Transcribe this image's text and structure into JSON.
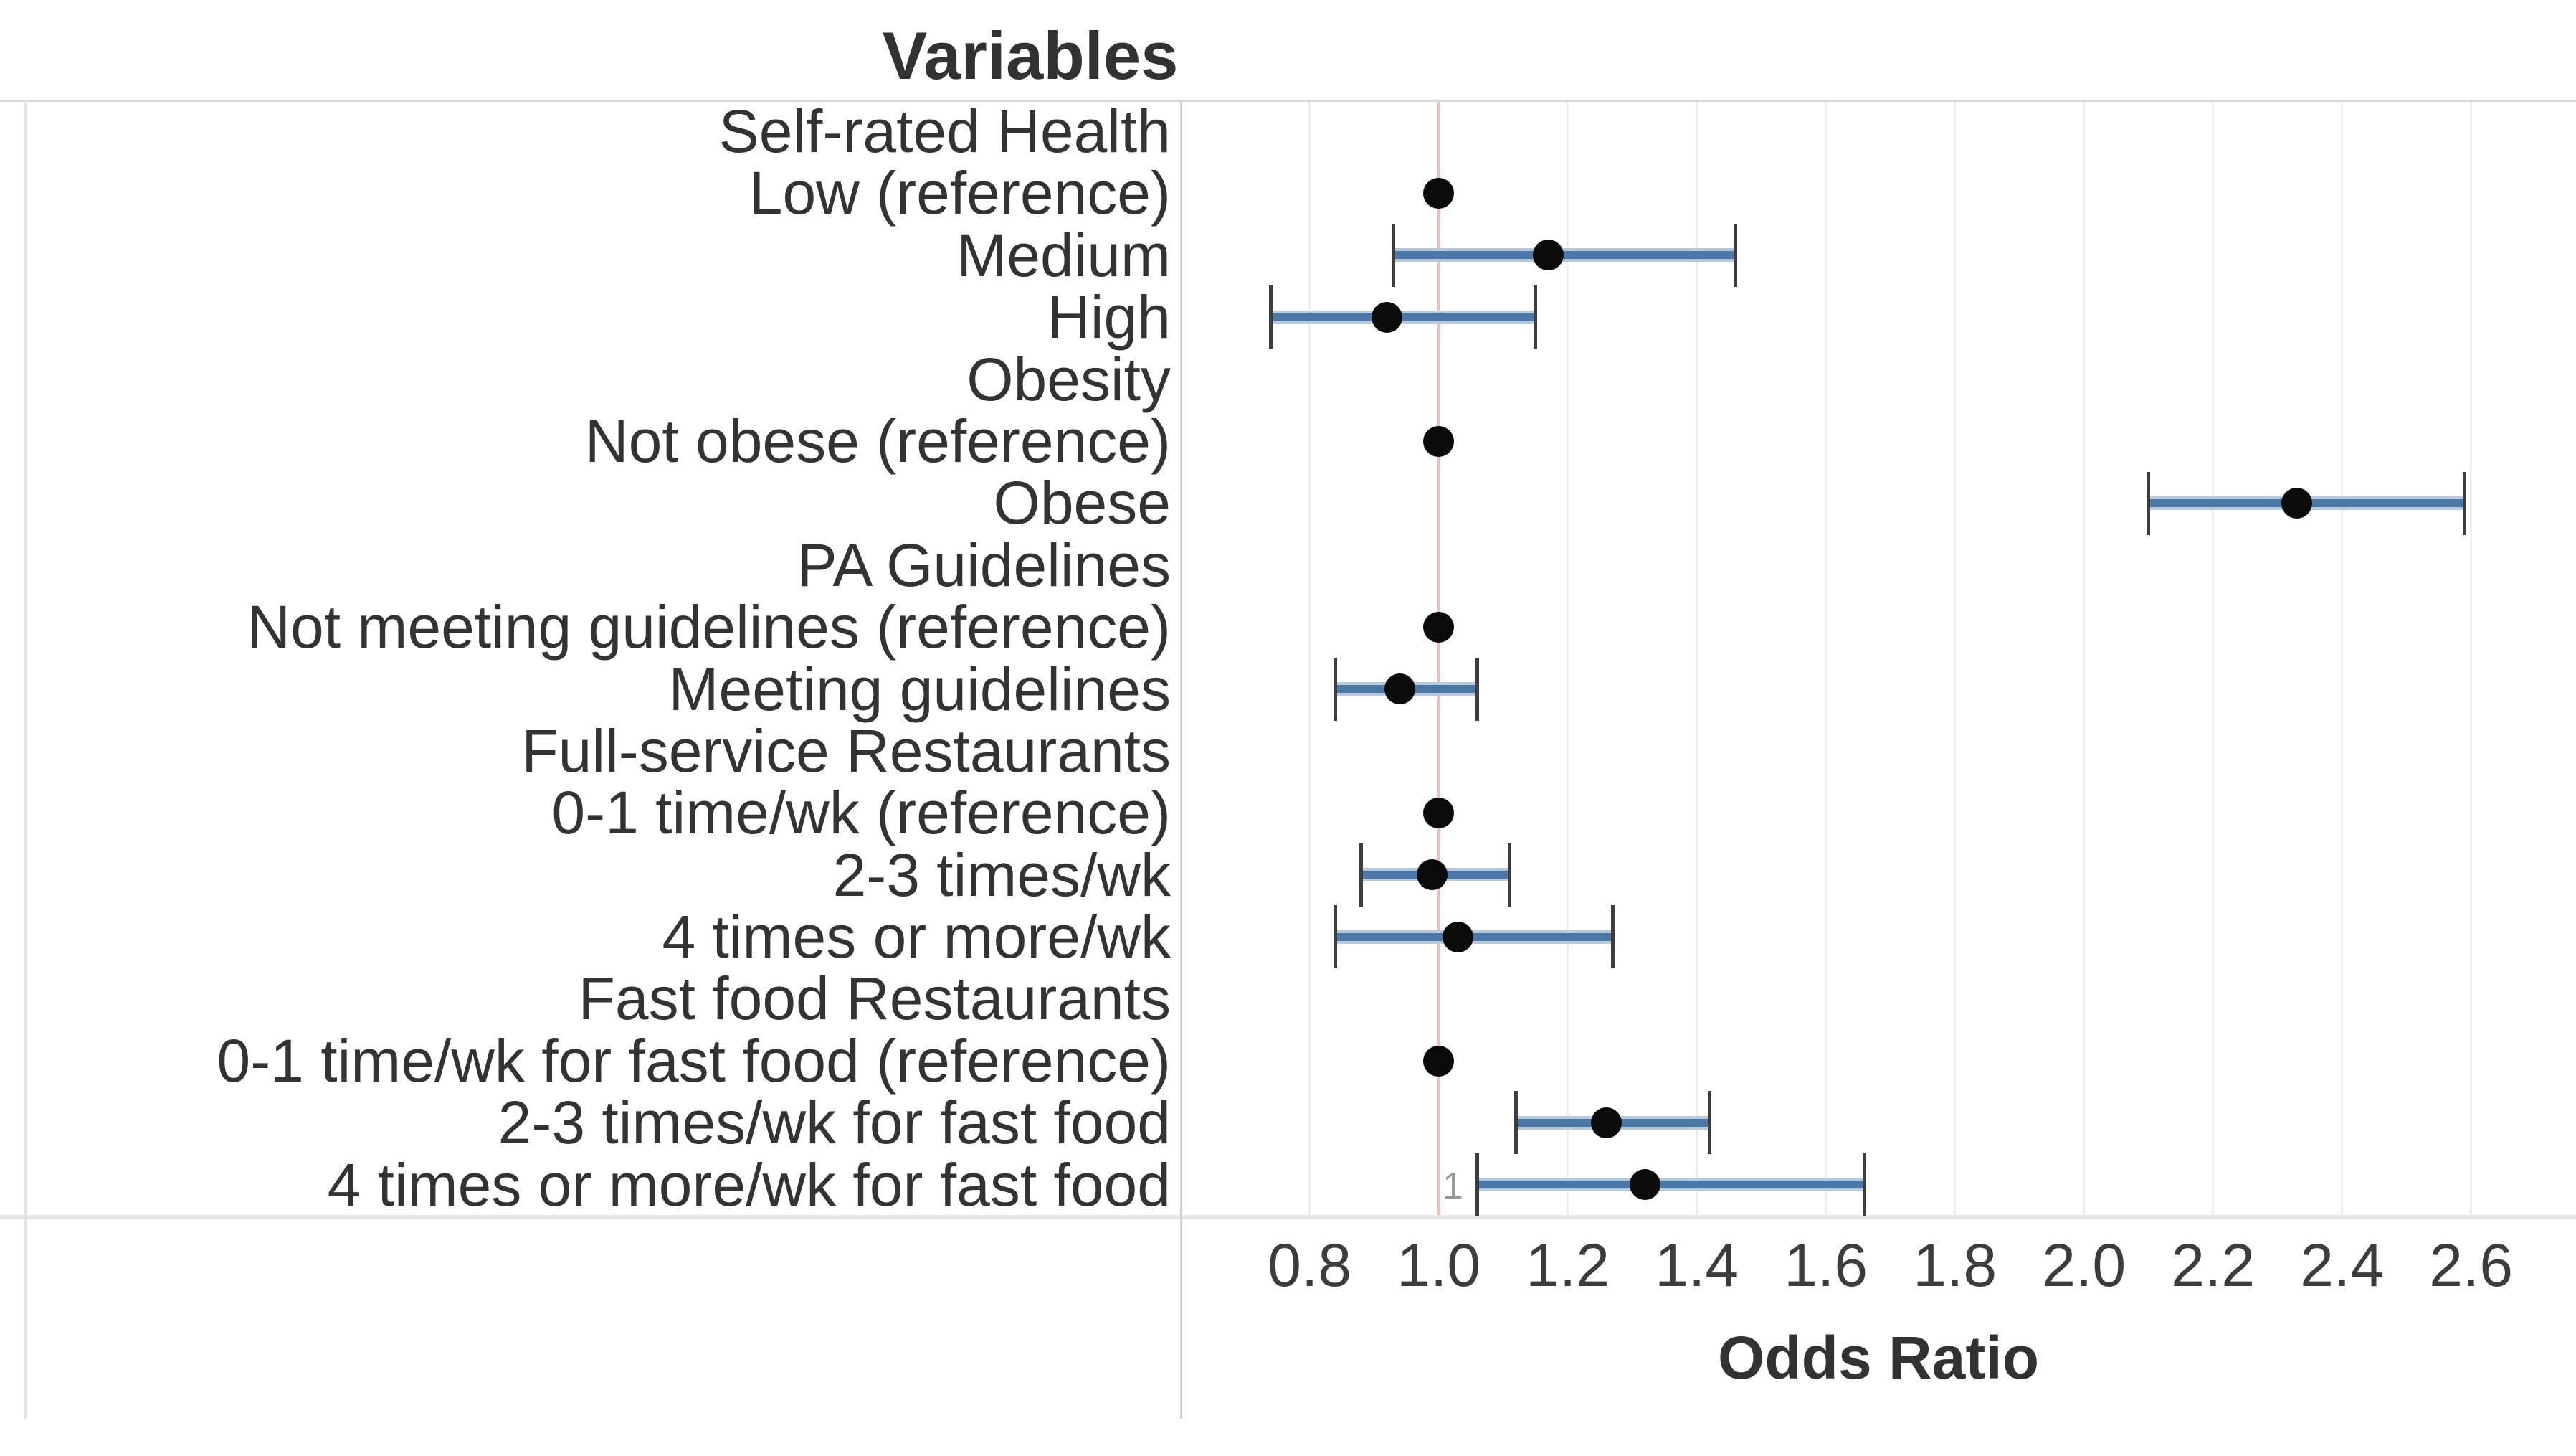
{
  "title": "Variables",
  "x_axis": {
    "title": "Odds Ratio",
    "ticks": [
      "0.8",
      "1.0",
      "1.2",
      "1.4",
      "1.6",
      "1.8",
      "2.0",
      "2.2",
      "2.4",
      "2.6"
    ]
  },
  "reference_line": {
    "value": 1.0,
    "label": "1",
    "color": "#f0bcbc"
  },
  "colors": {
    "bar_core": "#4b77a6",
    "bar_edge": "#b7c9dc",
    "whisker": "#3d3d3d",
    "dot": "#0b0b0b",
    "gridline": "#eeeeee",
    "border": "#d2d2d2",
    "text": "#333333"
  },
  "chart_data": {
    "type": "scatter",
    "subtype": "forest-plot-with-error-bars",
    "title": "Variables",
    "xlabel": "Odds Ratio",
    "xlim": [
      0.6,
      2.76
    ],
    "x_ticks": [
      0.8,
      1.0,
      1.2,
      1.4,
      1.6,
      1.8,
      2.0,
      2.2,
      2.4,
      2.6
    ],
    "grid": "vertical gridlines every 0.2",
    "legend": "none",
    "reference_line_x": 1.0,
    "rows": [
      {
        "label": "Self-rated Health",
        "kind": "header"
      },
      {
        "label": "Low (reference)",
        "kind": "reference",
        "or": 1.0
      },
      {
        "label": "Medium",
        "kind": "estimate",
        "or": 1.17,
        "ci_low": 0.93,
        "ci_high": 1.46
      },
      {
        "label": "High",
        "kind": "estimate",
        "or": 0.92,
        "ci_low": 0.74,
        "ci_high": 1.15
      },
      {
        "label": "Obesity",
        "kind": "header"
      },
      {
        "label": "Not obese (reference)",
        "kind": "reference",
        "or": 1.0
      },
      {
        "label": "Obese",
        "kind": "estimate",
        "or": 2.33,
        "ci_low": 2.1,
        "ci_high": 2.59
      },
      {
        "label": "PA Guidelines",
        "kind": "header"
      },
      {
        "label": "Not meeting guidelines (reference)",
        "kind": "reference",
        "or": 1.0
      },
      {
        "label": "Meeting guidelines",
        "kind": "estimate",
        "or": 0.94,
        "ci_low": 0.84,
        "ci_high": 1.06
      },
      {
        "label": "Full-service Restaurants",
        "kind": "header"
      },
      {
        "label": "0-1 time/wk (reference)",
        "kind": "reference",
        "or": 1.0
      },
      {
        "label": "2-3 times/wk",
        "kind": "estimate",
        "or": 0.99,
        "ci_low": 0.88,
        "ci_high": 1.11
      },
      {
        "label": "4 times or more/wk",
        "kind": "estimate",
        "or": 1.03,
        "ci_low": 0.84,
        "ci_high": 1.27
      },
      {
        "label": "Fast food Restaurants",
        "kind": "header"
      },
      {
        "label": "0-1 time/wk for fast food (reference)",
        "kind": "reference",
        "or": 1.0
      },
      {
        "label": "2-3 times/wk for fast food",
        "kind": "estimate",
        "or": 1.26,
        "ci_low": 1.12,
        "ci_high": 1.42
      },
      {
        "label": "4 times or more/wk for fast food",
        "kind": "estimate",
        "or": 1.32,
        "ci_low": 1.06,
        "ci_high": 1.66
      }
    ]
  }
}
